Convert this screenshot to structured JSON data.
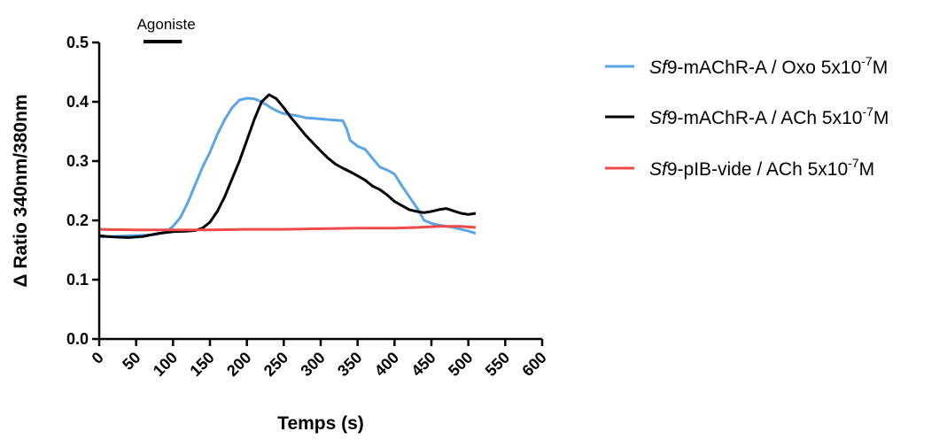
{
  "chart_data": {
    "type": "line",
    "xlabel": "Temps (s)",
    "ylabel": "Δ Ratio 340nm/380nm",
    "xlim": [
      0,
      600
    ],
    "ylim": [
      0,
      0.5
    ],
    "xticks": [
      0,
      50,
      100,
      150,
      200,
      250,
      300,
      350,
      400,
      450,
      500,
      550,
      600
    ],
    "yticks": [
      "0.0",
      "0.1",
      "0.2",
      "0.3",
      "0.4",
      "0.5"
    ],
    "grid": false,
    "legend_position": "right",
    "annotation": {
      "label": "Agoniste",
      "x_start": 60,
      "x_end": 112
    },
    "series": [
      {
        "legend_italic": "Sf",
        "legend_rest": "9-mAChR-A / Oxo 5x10",
        "legend_exp": "-7",
        "legend_unit": "M",
        "color": "#5aa5e6",
        "points": [
          [
            0,
            0.172
          ],
          [
            20,
            0.173
          ],
          [
            40,
            0.174
          ],
          [
            60,
            0.175
          ],
          [
            75,
            0.176
          ],
          [
            90,
            0.18
          ],
          [
            100,
            0.19
          ],
          [
            110,
            0.205
          ],
          [
            120,
            0.23
          ],
          [
            130,
            0.26
          ],
          [
            140,
            0.29
          ],
          [
            150,
            0.315
          ],
          [
            160,
            0.345
          ],
          [
            170,
            0.37
          ],
          [
            180,
            0.39
          ],
          [
            190,
            0.403
          ],
          [
            200,
            0.406
          ],
          [
            210,
            0.405
          ],
          [
            220,
            0.4
          ],
          [
            230,
            0.392
          ],
          [
            240,
            0.385
          ],
          [
            250,
            0.38
          ],
          [
            260,
            0.378
          ],
          [
            270,
            0.376
          ],
          [
            280,
            0.373
          ],
          [
            290,
            0.372
          ],
          [
            300,
            0.371
          ],
          [
            310,
            0.37
          ],
          [
            320,
            0.369
          ],
          [
            330,
            0.368
          ],
          [
            335,
            0.355
          ],
          [
            340,
            0.335
          ],
          [
            350,
            0.325
          ],
          [
            360,
            0.32
          ],
          [
            370,
            0.305
          ],
          [
            380,
            0.29
          ],
          [
            390,
            0.285
          ],
          [
            400,
            0.278
          ],
          [
            410,
            0.258
          ],
          [
            420,
            0.24
          ],
          [
            430,
            0.222
          ],
          [
            440,
            0.2
          ],
          [
            450,
            0.195
          ],
          [
            460,
            0.192
          ],
          [
            470,
            0.19
          ],
          [
            480,
            0.188
          ],
          [
            490,
            0.185
          ],
          [
            500,
            0.182
          ],
          [
            510,
            0.178
          ]
        ]
      },
      {
        "legend_italic": "Sf",
        "legend_rest": "9-mAChR-A / ACh 5x10",
        "legend_exp": "-7",
        "legend_unit": "M",
        "color": "#000000",
        "points": [
          [
            0,
            0.174
          ],
          [
            20,
            0.172
          ],
          [
            40,
            0.171
          ],
          [
            60,
            0.173
          ],
          [
            80,
            0.178
          ],
          [
            100,
            0.181
          ],
          [
            120,
            0.182
          ],
          [
            130,
            0.183
          ],
          [
            140,
            0.187
          ],
          [
            150,
            0.197
          ],
          [
            160,
            0.215
          ],
          [
            170,
            0.24
          ],
          [
            180,
            0.27
          ],
          [
            190,
            0.3
          ],
          [
            200,
            0.335
          ],
          [
            210,
            0.37
          ],
          [
            220,
            0.4
          ],
          [
            230,
            0.412
          ],
          [
            240,
            0.405
          ],
          [
            250,
            0.39
          ],
          [
            260,
            0.373
          ],
          [
            270,
            0.358
          ],
          [
            280,
            0.343
          ],
          [
            290,
            0.33
          ],
          [
            300,
            0.317
          ],
          [
            310,
            0.305
          ],
          [
            320,
            0.295
          ],
          [
            330,
            0.288
          ],
          [
            340,
            0.282
          ],
          [
            350,
            0.275
          ],
          [
            360,
            0.268
          ],
          [
            370,
            0.258
          ],
          [
            380,
            0.252
          ],
          [
            390,
            0.243
          ],
          [
            400,
            0.232
          ],
          [
            410,
            0.225
          ],
          [
            420,
            0.218
          ],
          [
            430,
            0.215
          ],
          [
            440,
            0.213
          ],
          [
            450,
            0.215
          ],
          [
            460,
            0.218
          ],
          [
            470,
            0.22
          ],
          [
            480,
            0.216
          ],
          [
            490,
            0.212
          ],
          [
            500,
            0.21
          ],
          [
            510,
            0.212
          ]
        ]
      },
      {
        "legend_italic": "Sf",
        "legend_rest": "9-pIB-vide / ACh 5x10",
        "legend_exp": "-7",
        "legend_unit": "M",
        "color": "#ee4a4a",
        "points": [
          [
            0,
            0.185
          ],
          [
            50,
            0.184
          ],
          [
            100,
            0.184
          ],
          [
            150,
            0.184
          ],
          [
            200,
            0.185
          ],
          [
            250,
            0.185
          ],
          [
            300,
            0.186
          ],
          [
            350,
            0.187
          ],
          [
            400,
            0.187
          ],
          [
            430,
            0.188
          ],
          [
            460,
            0.19
          ],
          [
            490,
            0.19
          ],
          [
            510,
            0.188
          ]
        ]
      }
    ]
  }
}
